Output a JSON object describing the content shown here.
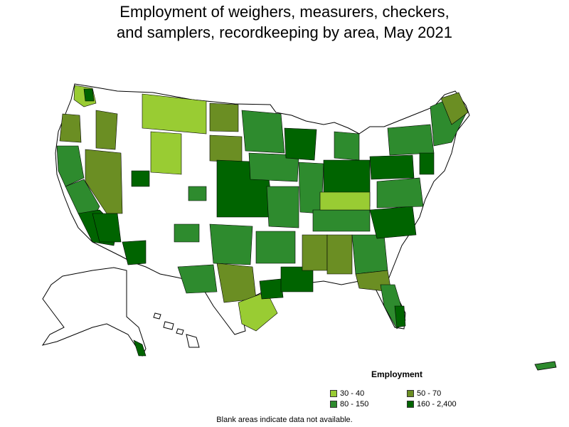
{
  "title_lines": [
    "Employment of weighers, measurers, checkers,",
    "and samplers, recordkeeping by area, May 2021"
  ],
  "legend": {
    "title": "Employment",
    "items": [
      {
        "label": "30 - 40",
        "color": "#99cc33"
      },
      {
        "label": "50 - 70",
        "color": "#6b8e23"
      },
      {
        "label": "80 - 150",
        "color": "#2e8b2e"
      },
      {
        "label": "160 - 2,400",
        "color": "#006400"
      }
    ]
  },
  "footnote": "Blank areas indicate data not available.",
  "colors": {
    "no_data": "#ffffff",
    "border": "#000000"
  }
}
